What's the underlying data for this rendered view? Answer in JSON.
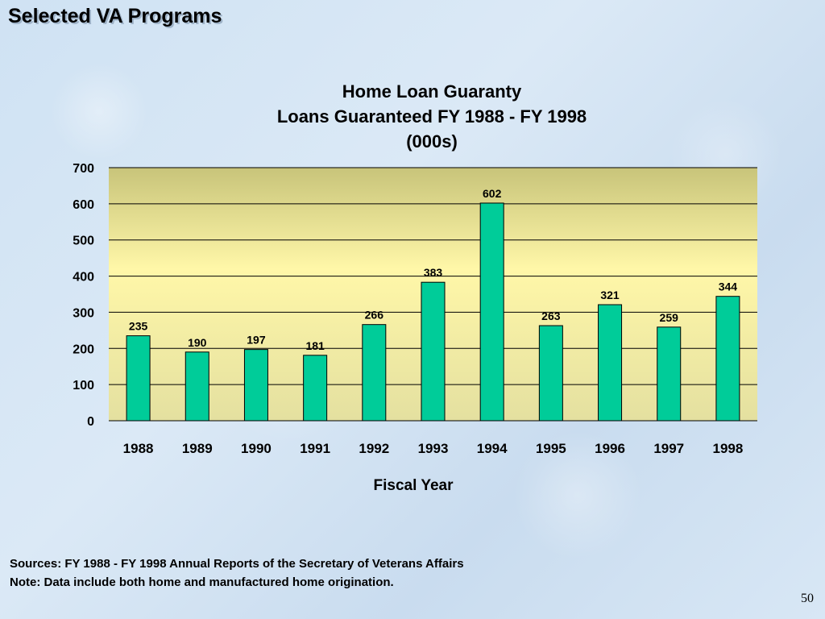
{
  "slide": {
    "title": "Selected VA Programs",
    "page_number": "50"
  },
  "footer": {
    "sources": "Sources:  FY 1988 - FY 1998 Annual Reports of the Secretary of Veterans Affairs",
    "note": "Note:  Data include both home and manufactured home origination."
  },
  "chart_data": {
    "type": "bar",
    "title_lines": [
      "Home Loan Guaranty",
      "Loans Guaranteed FY 1988 - FY 1998",
      "(000s)"
    ],
    "xlabel": "Fiscal Year",
    "ylabel": "",
    "categories": [
      "1988",
      "1989",
      "1990",
      "1991",
      "1992",
      "1993",
      "1994",
      "1995",
      "1996",
      "1997",
      "1998"
    ],
    "values": [
      235,
      190,
      197,
      181,
      266,
      383,
      602,
      263,
      321,
      259,
      344
    ],
    "ylim": [
      0,
      700
    ],
    "yticks": [
      0,
      100,
      200,
      300,
      400,
      500,
      600,
      700
    ],
    "grid": true,
    "legend": "none",
    "colors": {
      "bar": "#00cc99",
      "bar_stroke": "#000000",
      "plot_bg_top": "#c8c47a",
      "plot_bg_mid": "#fff7a8",
      "plot_bg_bottom": "#e4e0a0"
    }
  }
}
